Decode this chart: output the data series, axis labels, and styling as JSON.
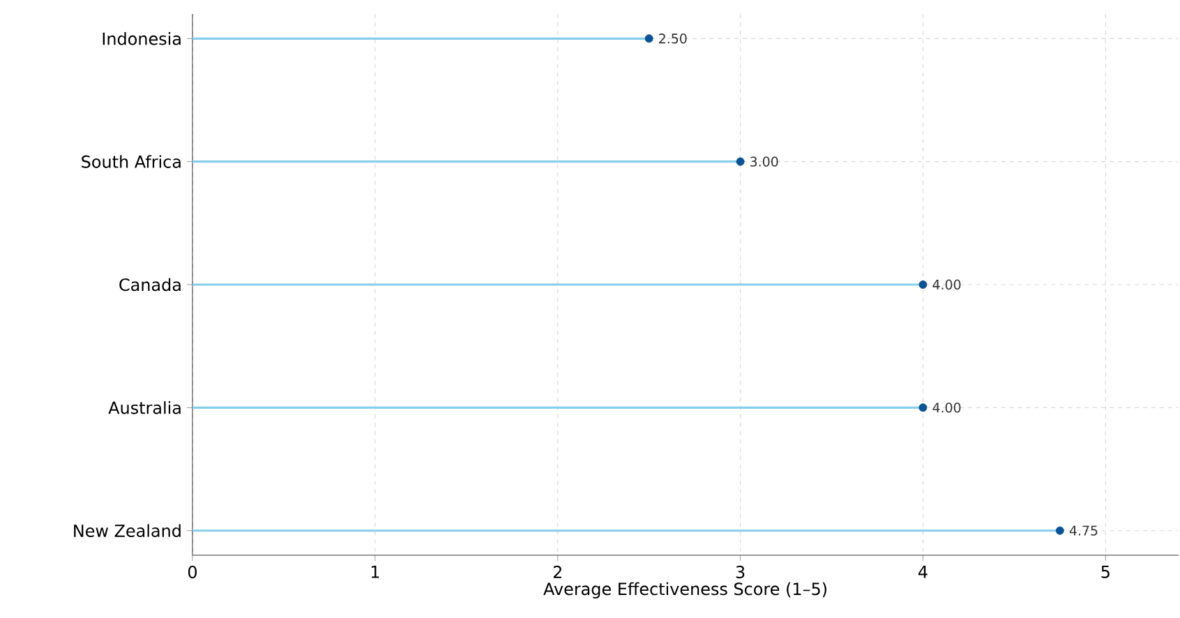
{
  "chart_data": {
    "type": "lollipop",
    "orientation": "horizontal",
    "xlabel": "Average Effectiveness Score (1–5)",
    "categories": [
      "Indonesia",
      "South Africa",
      "Canada",
      "Australia",
      "New Zealand"
    ],
    "values": [
      2.5,
      3,
      4,
      4,
      4.75
    ],
    "value_labels": [
      "2.50",
      "3.00",
      "4.00",
      "4.00",
      "4.75"
    ],
    "color": "#87ceeb",
    "colors": [
      "#0b5394",
      "#0b5394",
      "#0b5394",
      "#0b5394",
      "#0b5394"
    ],
    "marker": "circle",
    "xlim": [
      0,
      5.4
    ],
    "xticks": [
      0,
      1,
      2,
      3,
      4,
      5
    ],
    "grid": true
  }
}
